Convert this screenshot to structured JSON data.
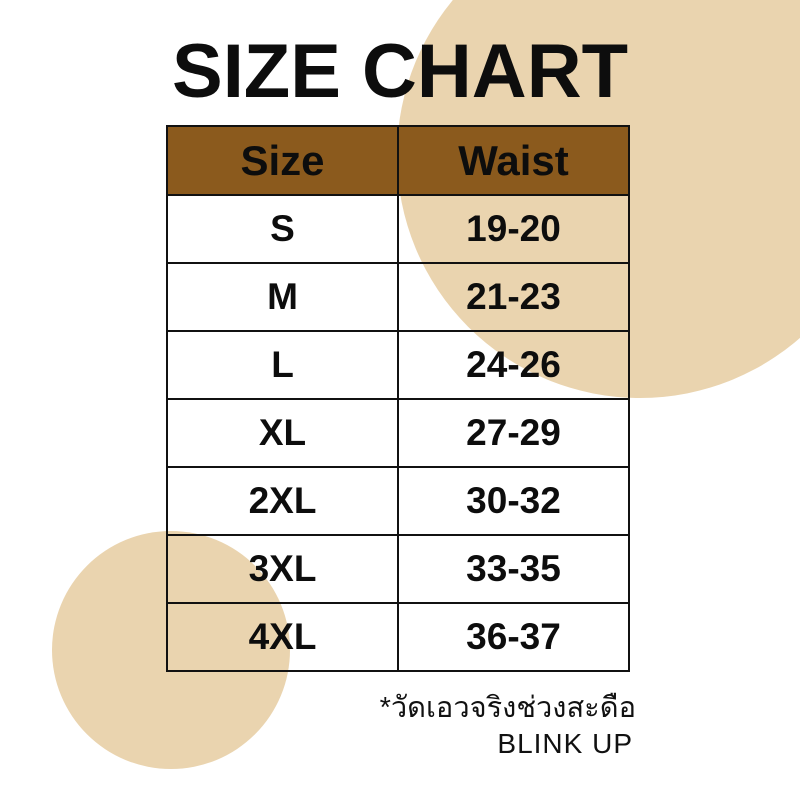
{
  "title": "SIZE CHART",
  "table": {
    "columns": [
      "Size",
      "Waist"
    ],
    "rows": [
      {
        "size": "S",
        "waist": "19-20"
      },
      {
        "size": "M",
        "waist": "21-23"
      },
      {
        "size": "L",
        "waist": "24-26"
      },
      {
        "size": "XL",
        "waist": "27-29"
      },
      {
        "size": "2XL",
        "waist": "30-32"
      },
      {
        "size": "3XL",
        "waist": "33-35"
      },
      {
        "size": "4XL",
        "waist": "36-37"
      }
    ]
  },
  "chart_data": {
    "type": "table",
    "title": "SIZE CHART",
    "columns": [
      "Size",
      "Waist"
    ],
    "rows": [
      [
        "S",
        "19-20"
      ],
      [
        "M",
        "21-23"
      ],
      [
        "L",
        "24-26"
      ],
      [
        "XL",
        "27-29"
      ],
      [
        "2XL",
        "30-32"
      ],
      [
        "3XL",
        "33-35"
      ],
      [
        "4XL",
        "36-37"
      ]
    ],
    "footnote": "*วัดเอวจริงช่วงสะดือ",
    "brand": "BLINK UP"
  },
  "footnote": "*วัดเอวจริงช่วงสะดือ",
  "brand": "BLINK UP",
  "colors": {
    "background": "#ffffff",
    "accent_circle": "#EAD4AF",
    "header_bg": "#8B5A1D",
    "text": "#0d0d0d",
    "border": "#111111"
  }
}
